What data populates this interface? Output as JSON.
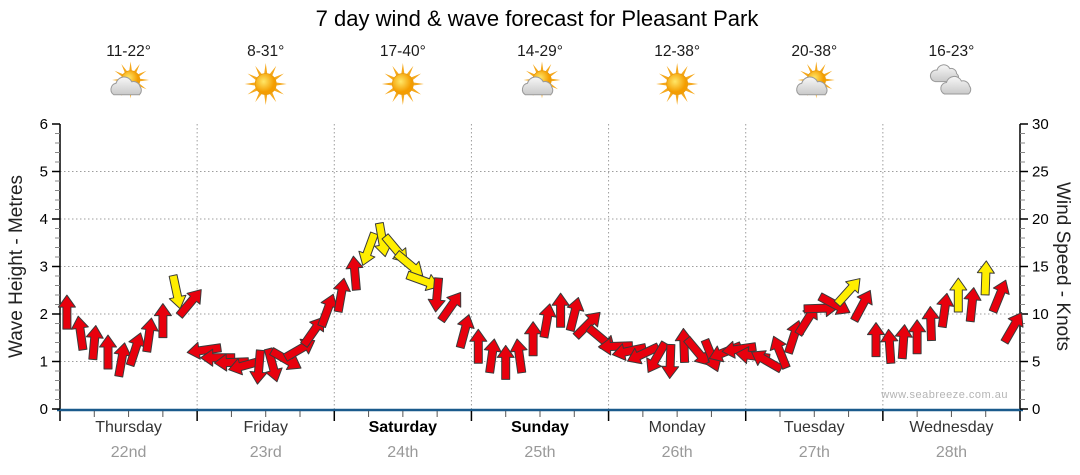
{
  "title": "7 day wind & wave forecast for Pleasant Park",
  "watermark": "www.seabreeze.com.au",
  "colors": {
    "arrow_red": "#E8000D",
    "arrow_yellow": "#FFEE00",
    "arrow_outline": "#3a3a3a",
    "bottom_axis_blue": "#1A5A8C",
    "grid_gray": "#9e9e9e",
    "day_date_gray": "#999999",
    "tick_black": "#000000"
  },
  "chart_data": {
    "type": "wind-arrow-series",
    "title": "7 day wind & wave forecast for Pleasant Park",
    "axes": {
      "left": {
        "label": "Wave Height - Metres",
        "min": 0,
        "max": 6,
        "ticks": [
          0,
          1,
          2,
          3,
          4,
          5,
          6
        ]
      },
      "right": {
        "label": "Wind Speed - Knots",
        "min": 0,
        "max": 30,
        "ticks": [
          0,
          5,
          10,
          15,
          20,
          25,
          30
        ]
      },
      "grid": "dotted horizontal at 5-knot steps, dotted vertical at day boundaries"
    },
    "days": [
      {
        "name": "Thursday",
        "date": "22nd",
        "temp": "11-22°",
        "icon": "sun-cloud",
        "bold": false
      },
      {
        "name": "Friday",
        "date": "23rd",
        "temp": "8-31°",
        "icon": "sun",
        "bold": false
      },
      {
        "name": "Saturday",
        "date": "24th",
        "temp": "17-40°",
        "icon": "sun",
        "bold": true
      },
      {
        "name": "Sunday",
        "date": "25th",
        "temp": "14-29°",
        "icon": "sun-cloud",
        "bold": true
      },
      {
        "name": "Monday",
        "date": "26th",
        "temp": "12-38°",
        "icon": "sun",
        "bold": false
      },
      {
        "name": "Tuesday",
        "date": "27th",
        "temp": "20-38°",
        "icon": "sun-cloud",
        "bold": false
      },
      {
        "name": "Wednesday",
        "date": "28th",
        "temp": "16-23°",
        "icon": "clouds",
        "bold": false
      }
    ],
    "dir_convention": "degrees clockwise from screen-up; direction the arrow points",
    "arrows": [
      {
        "t": 0.05,
        "kn": 10.2,
        "dir": 0,
        "c": "red"
      },
      {
        "t": 0.15,
        "kn": 8.0,
        "dir": 352,
        "c": "red"
      },
      {
        "t": 0.25,
        "kn": 7.0,
        "dir": 5,
        "c": "red"
      },
      {
        "t": 0.35,
        "kn": 6.0,
        "dir": 0,
        "c": "red"
      },
      {
        "t": 0.45,
        "kn": 5.2,
        "dir": 10,
        "c": "red"
      },
      {
        "t": 0.55,
        "kn": 6.3,
        "dir": 18,
        "c": "red"
      },
      {
        "t": 0.65,
        "kn": 7.8,
        "dir": 8,
        "c": "red"
      },
      {
        "t": 0.75,
        "kn": 9.3,
        "dir": 0,
        "c": "red"
      },
      {
        "t": 0.85,
        "kn": 12.3,
        "dir": 168,
        "c": "yellow"
      },
      {
        "t": 0.95,
        "kn": 11.2,
        "dir": 40,
        "c": "red"
      },
      {
        "t": 1.05,
        "kn": 6.2,
        "dir": 262,
        "c": "red"
      },
      {
        "t": 1.15,
        "kn": 5.4,
        "dir": 270,
        "c": "red"
      },
      {
        "t": 1.25,
        "kn": 4.9,
        "dir": 268,
        "c": "red"
      },
      {
        "t": 1.35,
        "kn": 4.6,
        "dir": 255,
        "c": "red"
      },
      {
        "t": 1.45,
        "kn": 4.4,
        "dir": 185,
        "c": "red"
      },
      {
        "t": 1.55,
        "kn": 4.6,
        "dir": 165,
        "c": "red"
      },
      {
        "t": 1.65,
        "kn": 5.2,
        "dir": 120,
        "c": "red"
      },
      {
        "t": 1.75,
        "kn": 6.3,
        "dir": 60,
        "c": "red"
      },
      {
        "t": 1.85,
        "kn": 8.2,
        "dir": 35,
        "c": "red"
      },
      {
        "t": 1.95,
        "kn": 10.4,
        "dir": 20,
        "c": "red"
      },
      {
        "t": 2.05,
        "kn": 12.0,
        "dir": 10,
        "c": "red"
      },
      {
        "t": 2.15,
        "kn": 14.3,
        "dir": 355,
        "c": "red"
      },
      {
        "t": 2.25,
        "kn": 16.8,
        "dir": 200,
        "c": "yellow"
      },
      {
        "t": 2.35,
        "kn": 17.8,
        "dir": 170,
        "c": "yellow"
      },
      {
        "t": 2.45,
        "kn": 16.8,
        "dir": 140,
        "c": "yellow"
      },
      {
        "t": 2.55,
        "kn": 15.2,
        "dir": 130,
        "c": "yellow"
      },
      {
        "t": 2.65,
        "kn": 13.5,
        "dir": 110,
        "c": "yellow"
      },
      {
        "t": 2.75,
        "kn": 12.0,
        "dir": 185,
        "c": "red"
      },
      {
        "t": 2.85,
        "kn": 10.8,
        "dir": 35,
        "c": "red"
      },
      {
        "t": 2.95,
        "kn": 8.2,
        "dir": 15,
        "c": "red"
      },
      {
        "t": 3.05,
        "kn": 6.6,
        "dir": 0,
        "c": "red"
      },
      {
        "t": 3.15,
        "kn": 5.6,
        "dir": 8,
        "c": "red"
      },
      {
        "t": 3.25,
        "kn": 4.9,
        "dir": 0,
        "c": "red"
      },
      {
        "t": 3.35,
        "kn": 5.6,
        "dir": 352,
        "c": "red"
      },
      {
        "t": 3.45,
        "kn": 7.4,
        "dir": 0,
        "c": "red"
      },
      {
        "t": 3.55,
        "kn": 9.3,
        "dir": 10,
        "c": "red"
      },
      {
        "t": 3.65,
        "kn": 10.4,
        "dir": 0,
        "c": "red"
      },
      {
        "t": 3.75,
        "kn": 10.0,
        "dir": 14,
        "c": "red"
      },
      {
        "t": 3.85,
        "kn": 8.9,
        "dir": 45,
        "c": "red"
      },
      {
        "t": 3.95,
        "kn": 7.4,
        "dir": 130,
        "c": "red"
      },
      {
        "t": 4.05,
        "kn": 6.6,
        "dir": 268,
        "c": "red"
      },
      {
        "t": 4.15,
        "kn": 6.1,
        "dir": 258,
        "c": "red"
      },
      {
        "t": 4.25,
        "kn": 5.8,
        "dir": 245,
        "c": "red"
      },
      {
        "t": 4.35,
        "kn": 5.4,
        "dir": 210,
        "c": "red"
      },
      {
        "t": 4.45,
        "kn": 5.0,
        "dir": 182,
        "c": "red"
      },
      {
        "t": 4.55,
        "kn": 6.7,
        "dir": 358,
        "c": "red"
      },
      {
        "t": 4.65,
        "kn": 6.0,
        "dir": 140,
        "c": "red"
      },
      {
        "t": 4.75,
        "kn": 5.6,
        "dir": 158,
        "c": "red"
      },
      {
        "t": 4.85,
        "kn": 6.0,
        "dir": 248,
        "c": "red"
      },
      {
        "t": 4.95,
        "kn": 6.3,
        "dir": 262,
        "c": "red"
      },
      {
        "t": 5.05,
        "kn": 5.6,
        "dir": 278,
        "c": "red"
      },
      {
        "t": 5.15,
        "kn": 5.1,
        "dir": 300,
        "c": "red"
      },
      {
        "t": 5.25,
        "kn": 6.0,
        "dir": 338,
        "c": "red"
      },
      {
        "t": 5.35,
        "kn": 7.6,
        "dir": 18,
        "c": "red"
      },
      {
        "t": 5.45,
        "kn": 9.4,
        "dir": 32,
        "c": "red"
      },
      {
        "t": 5.55,
        "kn": 10.6,
        "dir": 88,
        "c": "red"
      },
      {
        "t": 5.65,
        "kn": 11.0,
        "dir": 118,
        "c": "red"
      },
      {
        "t": 5.75,
        "kn": 12.4,
        "dir": 42,
        "c": "yellow"
      },
      {
        "t": 5.85,
        "kn": 10.9,
        "dir": 28,
        "c": "red"
      },
      {
        "t": 5.95,
        "kn": 7.3,
        "dir": 0,
        "c": "red"
      },
      {
        "t": 6.05,
        "kn": 6.6,
        "dir": 356,
        "c": "red"
      },
      {
        "t": 6.15,
        "kn": 7.1,
        "dir": 4,
        "c": "red"
      },
      {
        "t": 6.25,
        "kn": 7.6,
        "dir": 0,
        "c": "red"
      },
      {
        "t": 6.35,
        "kn": 9.0,
        "dir": 358,
        "c": "red"
      },
      {
        "t": 6.45,
        "kn": 10.4,
        "dir": 8,
        "c": "red"
      },
      {
        "t": 6.55,
        "kn": 12.0,
        "dir": 0,
        "c": "yellow"
      },
      {
        "t": 6.65,
        "kn": 11.0,
        "dir": 6,
        "c": "red"
      },
      {
        "t": 6.75,
        "kn": 13.8,
        "dir": 2,
        "c": "yellow"
      },
      {
        "t": 6.85,
        "kn": 11.9,
        "dir": 22,
        "c": "red"
      },
      {
        "t": 6.95,
        "kn": 8.6,
        "dir": 30,
        "c": "red"
      }
    ]
  }
}
